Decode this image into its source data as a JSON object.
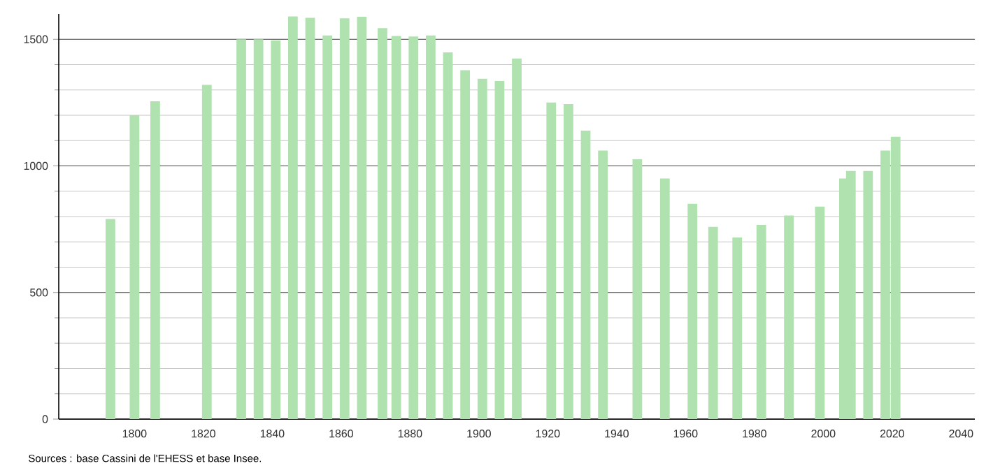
{
  "chart_data": {
    "type": "bar",
    "x": [
      1793,
      1800,
      1806,
      1821,
      1831,
      1836,
      1841,
      1846,
      1851,
      1856,
      1861,
      1866,
      1872,
      1876,
      1881,
      1886,
      1891,
      1896,
      1901,
      1906,
      1911,
      1921,
      1926,
      1931,
      1936,
      1946,
      1954,
      1962,
      1968,
      1975,
      1982,
      1990,
      1999,
      2006,
      2008,
      2013,
      2018,
      2021
    ],
    "values": [
      790,
      1200,
      1255,
      1320,
      1500,
      1500,
      1495,
      1590,
      1585,
      1515,
      1583,
      1589,
      1544,
      1513,
      1511,
      1515,
      1448,
      1378,
      1344,
      1335,
      1424,
      1250,
      1244,
      1139,
      1061,
      1026,
      950,
      850,
      759,
      717,
      767,
      804,
      839,
      950,
      980,
      980,
      1061,
      1115
    ],
    "color": "#b0e2b0",
    "xlim": [
      1778,
      2044
    ],
    "xticks": [
      1800,
      1820,
      1840,
      1860,
      1880,
      1900,
      1920,
      1940,
      1960,
      1980,
      2000,
      2020,
      2040
    ],
    "ylim": [
      0,
      1600
    ],
    "yticks": [
      0,
      500,
      1000,
      1500
    ],
    "grid": "y",
    "annotations": [
      "Sources : base Cassini de l'EHESS et base Insee."
    ]
  }
}
